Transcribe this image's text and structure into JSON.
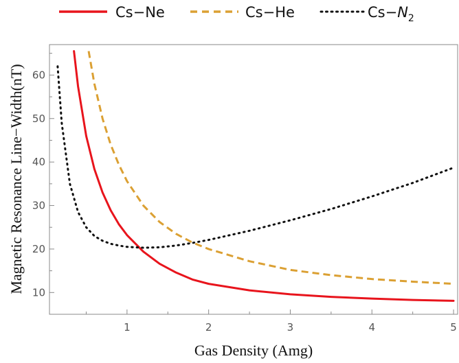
{
  "chart_data": {
    "type": "line",
    "title": "",
    "xlabel": "Gas Density (Amg)",
    "ylabel": "Magnetic Resonance Line−Width(nT)",
    "xlim": [
      0.05,
      5.05
    ],
    "ylim": [
      5,
      67
    ],
    "xticks": [
      1,
      2,
      3,
      4,
      5
    ],
    "yticks": [
      10,
      20,
      30,
      40,
      50,
      60
    ],
    "grid": false,
    "legend_position": "top",
    "series": [
      {
        "name": "Cs−Ne",
        "name_main": "Cs−Ne",
        "name_sub": "",
        "color": "#e8141c",
        "dash": "solid",
        "x": [
          0.35,
          0.4,
          0.5,
          0.6,
          0.7,
          0.8,
          0.9,
          1.0,
          1.2,
          1.4,
          1.6,
          1.8,
          2.0,
          2.5,
          3.0,
          3.5,
          4.0,
          4.5,
          5.0
        ],
        "y": [
          65.5,
          57.4,
          46.0,
          38.4,
          33.0,
          28.9,
          25.7,
          23.2,
          19.4,
          16.6,
          14.6,
          13.0,
          12.0,
          10.5,
          9.6,
          9.0,
          8.6,
          8.3,
          8.1
        ]
      },
      {
        "name": "Cs−He",
        "name_main": "Cs−He",
        "name_sub": "",
        "color": "#dba033",
        "dash": "dashed",
        "x": [
          0.53,
          0.6,
          0.7,
          0.8,
          0.9,
          1.0,
          1.2,
          1.4,
          1.6,
          1.8,
          2.0,
          2.5,
          3.0,
          3.5,
          4.0,
          4.5,
          5.0
        ],
        "y": [
          65.5,
          58.0,
          50.0,
          44.0,
          39.4,
          35.6,
          30.0,
          26.2,
          23.5,
          21.5,
          20.0,
          17.2,
          15.2,
          14.0,
          13.1,
          12.5,
          12.0
        ]
      },
      {
        "name": "Cs−N2",
        "name_main": "Cs−",
        "name_sub": "2",
        "name_italic": "N",
        "color": "#111111",
        "dash": "dotted",
        "x": [
          0.15,
          0.2,
          0.3,
          0.4,
          0.5,
          0.6,
          0.7,
          0.8,
          0.9,
          1.0,
          1.2,
          1.4,
          1.6,
          1.8,
          2.0,
          2.5,
          3.0,
          3.5,
          4.0,
          4.5,
          5.0
        ],
        "y": [
          62.0,
          49.0,
          35.0,
          28.5,
          25.0,
          23.0,
          21.9,
          21.2,
          20.8,
          20.5,
          20.3,
          20.4,
          20.8,
          21.4,
          22.1,
          24.2,
          26.6,
          29.2,
          32.1,
          35.2,
          38.7
        ]
      }
    ]
  }
}
